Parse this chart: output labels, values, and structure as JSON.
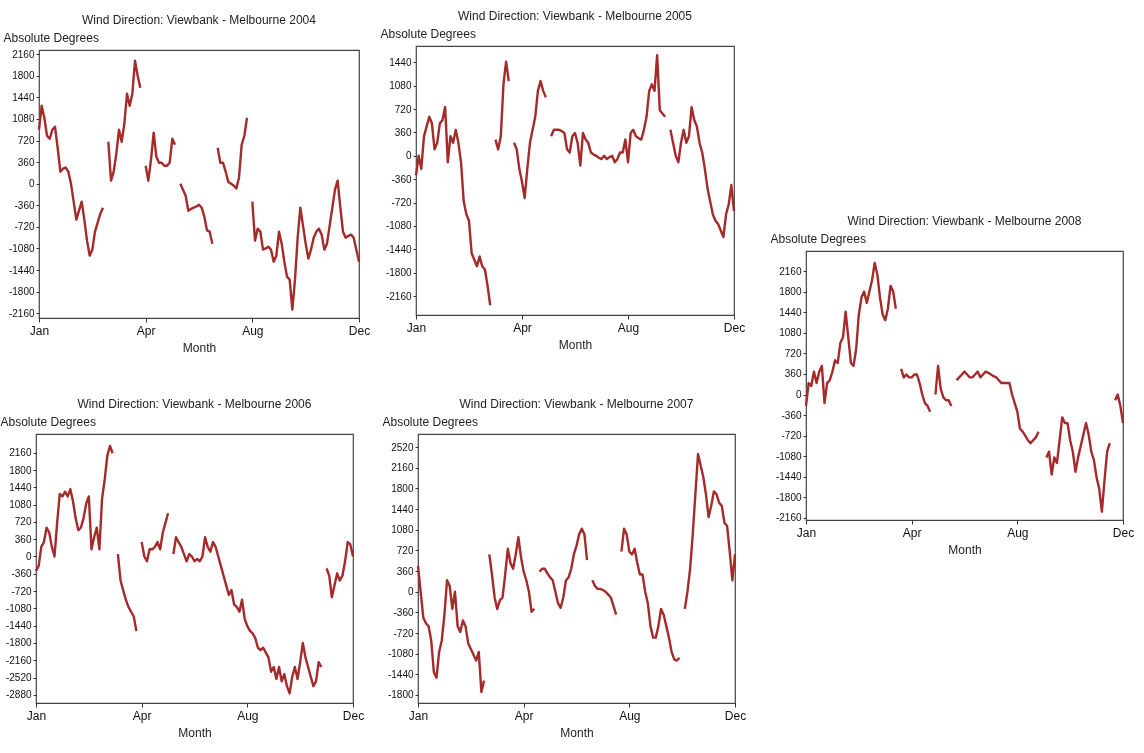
{
  "chart_data": [
    {
      "type": "line",
      "title": "Wind Direction: Viewbank - Melbourne 2004",
      "xlabel": "Month",
      "ylabel": "Absolute Degrees",
      "color": "#a52a2a",
      "categories": [
        "Jan",
        null,
        null,
        null,
        null,
        null,
        null,
        null,
        null,
        null,
        null,
        null,
        null,
        null,
        null,
        null,
        null,
        null,
        null,
        null,
        null,
        null,
        null,
        null,
        null,
        null,
        null,
        null,
        null,
        null,
        null,
        null,
        null,
        null,
        null,
        null,
        null,
        null,
        null,
        null,
        "Apr",
        null,
        null,
        null,
        null,
        null,
        null,
        null,
        null,
        null,
        null,
        null,
        null,
        null,
        null,
        null,
        null,
        null,
        null,
        null,
        null,
        null,
        null,
        null,
        null,
        null,
        null,
        null,
        null,
        null,
        null,
        null,
        null,
        null,
        null,
        null,
        null,
        null,
        null,
        null,
        "Aug",
        null,
        null,
        null,
        null,
        null,
        null,
        null,
        null,
        null,
        null,
        null,
        null,
        null,
        null,
        null,
        null,
        null,
        null,
        null,
        null,
        null,
        null,
        null,
        null,
        null,
        null,
        null,
        null,
        null,
        null,
        null,
        null,
        null,
        null,
        null,
        null,
        null,
        null,
        null,
        "Dec"
      ],
      "ylim": [
        -2240,
        2230
      ],
      "yticks": [
        -2160,
        -1800,
        -1440,
        -1080,
        -720,
        -360,
        0,
        360,
        720,
        1080,
        1440,
        1800,
        2160
      ],
      "values": [
        900,
        1300,
        1100,
        800,
        750,
        900,
        950,
        600,
        200,
        250,
        270,
        200,
        0,
        -300,
        -600,
        -450,
        -300,
        -600,
        -950,
        -1200,
        -1100,
        -800,
        -650,
        -500,
        -400,
        null,
        700,
        50,
        200,
        500,
        900,
        700,
        1000,
        1500,
        1300,
        1500,
        2050,
        1800,
        1600,
        null,
        300,
        50,
        400,
        850,
        450,
        350,
        350,
        300,
        300,
        350,
        750,
        650,
        null,
        0,
        -100,
        -200,
        -450,
        -420,
        -400,
        -380,
        -350,
        -400,
        -550,
        -780,
        -800,
        -1000,
        null,
        600,
        350,
        350,
        200,
        30,
        0,
        -30,
        -80,
        100,
        650,
        800,
        1100,
        null,
        -300,
        -950,
        -750,
        -800,
        -1100,
        -1080,
        -1050,
        -1100,
        -1300,
        -1200,
        -800,
        -1000,
        -1300,
        -1550,
        -1600,
        -2100,
        -1600,
        -900,
        -400,
        -700,
        -1000,
        -1250,
        -1100,
        -900,
        -800,
        -750,
        -850,
        -1100,
        -1000,
        -700,
        -400,
        -100,
        50,
        -400,
        -800,
        -900,
        -870,
        -850,
        -900,
        -1100,
        -1300
      ]
    },
    {
      "type": "line",
      "title": "Wind Direction: Viewbank - Melbourne 2005",
      "xlabel": "Month",
      "ylabel": "Absolute Degrees",
      "color": "#a52a2a",
      "categories": [
        "Jan",
        null,
        null,
        null,
        null,
        null,
        null,
        null,
        null,
        null,
        null,
        null,
        null,
        null,
        null,
        null,
        null,
        null,
        null,
        null,
        null,
        null,
        null,
        null,
        null,
        null,
        null,
        null,
        null,
        null,
        null,
        null,
        null,
        null,
        null,
        null,
        null,
        null,
        null,
        null,
        "Apr",
        null,
        null,
        null,
        null,
        null,
        null,
        null,
        null,
        null,
        null,
        null,
        null,
        null,
        null,
        null,
        null,
        null,
        null,
        null,
        null,
        null,
        null,
        null,
        null,
        null,
        null,
        null,
        null,
        null,
        null,
        null,
        null,
        null,
        null,
        null,
        null,
        null,
        null,
        null,
        "Aug",
        null,
        null,
        null,
        null,
        null,
        null,
        null,
        null,
        null,
        null,
        null,
        null,
        null,
        null,
        null,
        null,
        null,
        null,
        null,
        null,
        null,
        null,
        null,
        null,
        null,
        null,
        null,
        null,
        null,
        null,
        null,
        null,
        null,
        null,
        null,
        null,
        null,
        null,
        null,
        "Dec"
      ],
      "ylim": [
        -2450,
        1690
      ],
      "yticks": [
        -2160,
        -1800,
        -1440,
        -1080,
        -720,
        -360,
        0,
        360,
        720,
        1080,
        1440
      ],
      "values": [
        -300,
        0,
        -200,
        300,
        450,
        600,
        500,
        100,
        200,
        500,
        550,
        750,
        -100,
        300,
        200,
        400,
        200,
        -100,
        -700,
        -900,
        -1000,
        -1500,
        -1600,
        -1700,
        -1550,
        -1700,
        -1750,
        -2000,
        -2300,
        null,
        250,
        100,
        300,
        1100,
        1450,
        1150,
        null,
        200,
        100,
        -200,
        -400,
        -650,
        -200,
        200,
        400,
        600,
        1000,
        1150,
        1000,
        900,
        null,
        300,
        400,
        400,
        400,
        380,
        350,
        100,
        50,
        300,
        350,
        200,
        -150,
        350,
        250,
        200,
        50,
        20,
        0,
        -30,
        -50,
        0,
        -50,
        -20,
        0,
        -100,
        -50,
        50,
        50,
        250,
        -100,
        350,
        400,
        300,
        270,
        250,
        400,
        600,
        1000,
        1100,
        1000,
        1550,
        700,
        650,
        600,
        null,
        400,
        200,
        0,
        -100,
        200,
        400,
        200,
        300,
        750,
        550,
        450,
        200,
        50,
        -200,
        -500,
        -700,
        -900,
        -1000,
        -1050,
        -1150,
        -1250,
        -900,
        -750,
        -450,
        -850
      ]
    },
    {
      "type": "line",
      "title": "Wind Direction: Viewbank - Melbourne 2006",
      "xlabel": "Month",
      "ylabel": "Absolute Degrees",
      "color": "#a52a2a",
      "categories": [
        "Jan",
        null,
        null,
        null,
        null,
        null,
        null,
        null,
        null,
        null,
        null,
        null,
        null,
        null,
        null,
        null,
        null,
        null,
        null,
        null,
        null,
        null,
        null,
        null,
        null,
        null,
        null,
        null,
        null,
        null,
        null,
        null,
        null,
        null,
        null,
        null,
        null,
        null,
        null,
        null,
        "Apr",
        null,
        null,
        null,
        null,
        null,
        null,
        null,
        null,
        null,
        null,
        null,
        null,
        null,
        null,
        null,
        null,
        null,
        null,
        null,
        null,
        null,
        null,
        null,
        null,
        null,
        null,
        null,
        null,
        null,
        null,
        null,
        null,
        null,
        null,
        null,
        null,
        null,
        null,
        null,
        "Aug",
        null,
        null,
        null,
        null,
        null,
        null,
        null,
        null,
        null,
        null,
        null,
        null,
        null,
        null,
        null,
        null,
        null,
        null,
        null,
        null,
        null,
        null,
        null,
        null,
        null,
        null,
        null,
        null,
        null,
        null,
        null,
        null,
        null,
        null,
        null,
        null,
        null,
        null,
        null,
        "Dec"
      ],
      "ylim": [
        -3050,
        2550
      ],
      "yticks": [
        -2880,
        -2520,
        -2160,
        -1800,
        -1440,
        -1080,
        -720,
        -360,
        0,
        360,
        720,
        1080,
        1440,
        1800,
        2160
      ],
      "values": [
        -300,
        -200,
        200,
        300,
        600,
        500,
        200,
        0,
        700,
        1300,
        1250,
        1350,
        1250,
        1400,
        1150,
        800,
        550,
        600,
        800,
        1100,
        1250,
        150,
        400,
        600,
        150,
        1200,
        1600,
        2100,
        2300,
        2150,
        null,
        50,
        -500,
        -700,
        -900,
        -1050,
        -1150,
        -1250,
        -1550,
        null,
        300,
        0,
        -100,
        150,
        150,
        200,
        300,
        150,
        500,
        700,
        900,
        null,
        50,
        400,
        300,
        200,
        50,
        -100,
        50,
        0,
        -100,
        -50,
        -100,
        0,
        400,
        200,
        100,
        300,
        200,
        0,
        -200,
        -400,
        -600,
        -800,
        -700,
        -1000,
        -1050,
        -1150,
        -900,
        -1300,
        -1450,
        -1550,
        -1600,
        -1700,
        -1900,
        -1950,
        -1900,
        -2000,
        -2100,
        -2400,
        -2300,
        -2550,
        -2300,
        -2600,
        -2450,
        -2700,
        -2850,
        -2500,
        -2300,
        -2550,
        -2200,
        -1800,
        -2100,
        -2300,
        -2500,
        -2700,
        -2600,
        -2200,
        -2300,
        null,
        -250,
        -400,
        -850,
        -600,
        -350,
        -500,
        -400,
        -100,
        300,
        250,
        0
      ]
    },
    {
      "type": "line",
      "title": "Wind Direction: Viewbank - Melbourne 2007",
      "xlabel": "Month",
      "ylabel": "Absolute Degrees",
      "color": "#a52a2a",
      "categories": [
        "Jan",
        null,
        null,
        null,
        null,
        null,
        null,
        null,
        null,
        null,
        null,
        null,
        null,
        null,
        null,
        null,
        null,
        null,
        null,
        null,
        null,
        null,
        null,
        null,
        null,
        null,
        null,
        null,
        null,
        null,
        null,
        null,
        null,
        null,
        null,
        null,
        null,
        null,
        null,
        null,
        "Apr",
        null,
        null,
        null,
        null,
        null,
        null,
        null,
        null,
        null,
        null,
        null,
        null,
        null,
        null,
        null,
        null,
        null,
        null,
        null,
        null,
        null,
        null,
        null,
        null,
        null,
        null,
        null,
        null,
        null,
        null,
        null,
        null,
        null,
        null,
        null,
        null,
        null,
        null,
        null,
        "Aug",
        null,
        null,
        null,
        null,
        null,
        null,
        null,
        null,
        null,
        null,
        null,
        null,
        null,
        null,
        null,
        null,
        null,
        null,
        null,
        null,
        null,
        null,
        null,
        null,
        null,
        null,
        null,
        null,
        null,
        null,
        null,
        null,
        null,
        null,
        null,
        null,
        null,
        null,
        null,
        "Dec"
      ],
      "ylim": [
        -1940,
        2750
      ],
      "yticks": [
        -1800,
        -1440,
        -1080,
        -720,
        -360,
        0,
        360,
        720,
        1080,
        1440,
        1800,
        2160,
        2520
      ],
      "values": [
        450,
        0,
        -450,
        -550,
        -600,
        -850,
        -1400,
        -1500,
        -1050,
        -850,
        -400,
        200,
        100,
        -300,
        0,
        -600,
        -700,
        -500,
        -600,
        -900,
        -1000,
        -1100,
        -1200,
        -1050,
        -1750,
        -1550,
        null,
        650,
        300,
        -100,
        -300,
        -150,
        -100,
        300,
        750,
        500,
        400,
        650,
        950,
        600,
        350,
        200,
        0,
        -350,
        -300,
        null,
        350,
        400,
        400,
        320,
        250,
        200,
        0,
        -200,
        -280,
        -100,
        200,
        250,
        400,
        650,
        800,
        1000,
        1100,
        1000,
        550,
        null,
        200,
        100,
        50,
        50,
        30,
        0,
        -50,
        -100,
        -250,
        -400,
        null,
        700,
        1100,
        1000,
        700,
        650,
        750,
        500,
        300,
        300,
        0,
        -200,
        -600,
        -800,
        -800,
        -600,
        -300,
        -400,
        -600,
        -800,
        -1050,
        -1180,
        -1200,
        -1150,
        null,
        -300,
        0,
        400,
        1000,
        1700,
        2400,
        2200,
        2000,
        1700,
        1300,
        1500,
        1750,
        1700,
        1550,
        1500,
        1200,
        1150,
        700,
        200,
        650
      ]
    },
    {
      "type": "line",
      "title": "Wind Direction: Viewbank - Melbourne 2008",
      "xlabel": "Month",
      "ylabel": "Absolute Degrees",
      "color": "#a52a2a",
      "categories": [
        "Jan",
        null,
        null,
        null,
        null,
        null,
        null,
        null,
        null,
        null,
        null,
        null,
        null,
        null,
        null,
        null,
        null,
        null,
        null,
        null,
        null,
        null,
        null,
        null,
        null,
        null,
        null,
        null,
        null,
        null,
        null,
        null,
        null,
        null,
        null,
        null,
        null,
        null,
        null,
        null,
        "Apr",
        null,
        null,
        null,
        null,
        null,
        null,
        null,
        null,
        null,
        null,
        null,
        null,
        null,
        null,
        null,
        null,
        null,
        null,
        null,
        null,
        null,
        null,
        null,
        null,
        null,
        null,
        null,
        null,
        null,
        null,
        null,
        null,
        null,
        null,
        null,
        null,
        null,
        null,
        null,
        "Aug",
        null,
        null,
        null,
        null,
        null,
        null,
        null,
        null,
        null,
        null,
        null,
        null,
        null,
        null,
        null,
        null,
        null,
        null,
        null,
        null,
        null,
        null,
        null,
        null,
        null,
        null,
        null,
        null,
        null,
        null,
        null,
        null,
        null,
        null,
        null,
        null,
        null,
        null,
        null,
        "Dec"
      ],
      "ylim": [
        -2195,
        2510
      ],
      "yticks": [
        -2160,
        -1800,
        -1440,
        -1080,
        -720,
        -360,
        0,
        360,
        720,
        1080,
        1440,
        1800,
        2160
      ],
      "values": [
        -200,
        200,
        150,
        400,
        200,
        400,
        500,
        -150,
        200,
        250,
        400,
        600,
        550,
        900,
        1000,
        1450,
        1000,
        550,
        500,
        800,
        1400,
        1700,
        1800,
        1600,
        1800,
        2000,
        2300,
        2100,
        1700,
        1400,
        1300,
        1500,
        1900,
        1800,
        1500,
        null,
        450,
        300,
        350,
        300,
        300,
        350,
        350,
        200,
        0,
        -150,
        -200,
        -300,
        null,
        0,
        500,
        100,
        -50,
        -100,
        -100,
        -200,
        null,
        250,
        300,
        350,
        400,
        350,
        300,
        300,
        350,
        400,
        300,
        350,
        400,
        380,
        350,
        320,
        300,
        250,
        200,
        200,
        200,
        200,
        0,
        -150,
        -300,
        -600,
        -650,
        -720,
        -800,
        -850,
        -800,
        -750,
        -650,
        null,
        null,
        -1100,
        -1000,
        -1400,
        -1100,
        -1200,
        -800,
        -400,
        -500,
        -500,
        -800,
        -1000,
        -1350,
        -1100,
        -900,
        -700,
        -500,
        -700,
        -1000,
        -1150,
        -1450,
        -1650,
        -2050,
        -1500,
        -1000,
        -850,
        null,
        -100,
        0,
        -200,
        -500
      ]
    }
  ]
}
